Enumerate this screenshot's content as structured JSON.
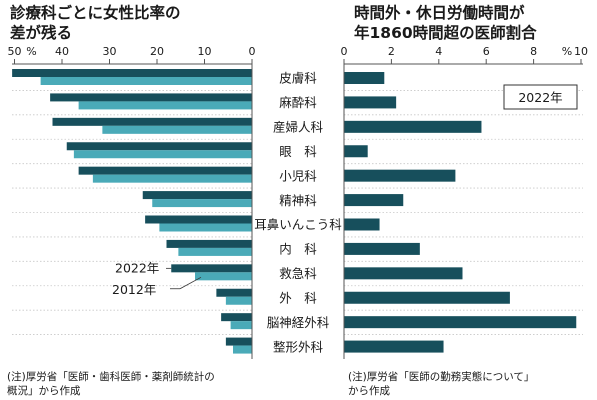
{
  "left_chart": {
    "title_lines": [
      "診療科ごとに女性比率の",
      "差が残る"
    ],
    "legend": [
      "2022年",
      "2012年"
    ],
    "axis_ticks": [
      "50",
      "%",
      "40",
      "30",
      "20",
      "10",
      "0"
    ],
    "note_lines": [
      "(注)厚労省「医師・歯科医師・薬剤師統計の",
      "概況」から作成"
    ],
    "colors": {
      "series_2022": "#174f5c",
      "series_2012": "#4aaab8"
    }
  },
  "right_chart": {
    "title_lines": [
      "時間外・休日労働時間が",
      "年1860時間超の医師割合"
    ],
    "year_label": "2022年",
    "axis_ticks": [
      "0",
      "2",
      "4",
      "6",
      "8",
      "%",
      "10"
    ],
    "note_lines": [
      "(注)厚労省「医師の勤務実態について」",
      "から作成"
    ],
    "colors": {
      "bar": "#174f5c"
    }
  },
  "chart_data": [
    {
      "type": "bar",
      "orientation": "horizontal",
      "direction": "right-to-left",
      "title": "診療科ごとに女性比率の差が残る",
      "categories": [
        "皮膚科",
        "麻酔科",
        "産婦人科",
        "眼　科",
        "小児科",
        "精神科",
        "耳鼻いんこう科",
        "内　科",
        "救急科",
        "外　科",
        "脳神経外科",
        "整形外科"
      ],
      "series": [
        {
          "name": "2022年",
          "values": [
            50.5,
            42.5,
            42.0,
            39.0,
            36.5,
            23.0,
            22.5,
            18.0,
            17.0,
            7.5,
            6.5,
            5.5
          ]
        },
        {
          "name": "2012年",
          "values": [
            44.5,
            36.5,
            31.5,
            37.5,
            33.5,
            21.0,
            19.5,
            15.5,
            12.0,
            5.5,
            4.5,
            4.0
          ]
        }
      ],
      "xlim": [
        0,
        52
      ],
      "ylabel": "",
      "xlabel": "%"
    },
    {
      "type": "bar",
      "orientation": "horizontal",
      "title": "時間外・休日労働時間が年1860時間超の医師割合",
      "categories": [
        "皮膚科",
        "麻酔科",
        "産婦人科",
        "眼　科",
        "小児科",
        "精神科",
        "耳鼻いんこう科",
        "内　科",
        "救急科",
        "外　科",
        "脳神経外科",
        "整形外科"
      ],
      "series": [
        {
          "name": "2022年",
          "values": [
            1.7,
            2.2,
            5.8,
            1.0,
            4.7,
            2.5,
            1.5,
            3.2,
            5.0,
            7.0,
            9.8,
            4.2
          ]
        }
      ],
      "xlim": [
        0,
        10
      ],
      "xlabel": "%"
    }
  ]
}
